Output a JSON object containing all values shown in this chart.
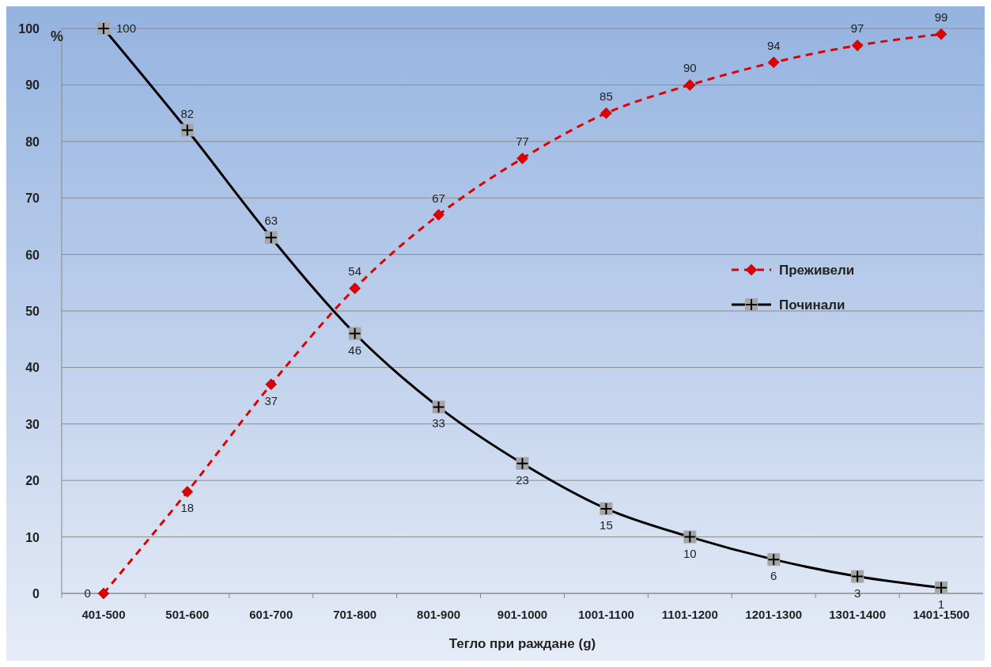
{
  "chart_data": {
    "type": "line",
    "xlabel": "Тегло при раждане (g)",
    "ylabel": "%",
    "categories": [
      "401-500",
      "501-600",
      "601-700",
      "701-800",
      "801-900",
      "901-1000",
      "1001-1100",
      "1101-1200",
      "1201-1300",
      "1301-1400",
      "1401-1500"
    ],
    "series": [
      {
        "name": "Преживели",
        "color": "#e00000",
        "marker": "diamond",
        "line_style": "dashed",
        "values": [
          0,
          18,
          37,
          54,
          67,
          77,
          85,
          90,
          94,
          97,
          99
        ]
      },
      {
        "name": "Починали",
        "color": "#000000",
        "marker": "cross",
        "line_style": "solid",
        "values": [
          100,
          82,
          63,
          46,
          33,
          23,
          15,
          10,
          6,
          3,
          1
        ]
      }
    ],
    "ylim": [
      0,
      100
    ],
    "yticks": [
      0,
      10,
      20,
      30,
      40,
      50,
      60,
      70,
      80,
      90,
      100
    ],
    "grid": "y",
    "legend": "right",
    "data_labels": true
  }
}
